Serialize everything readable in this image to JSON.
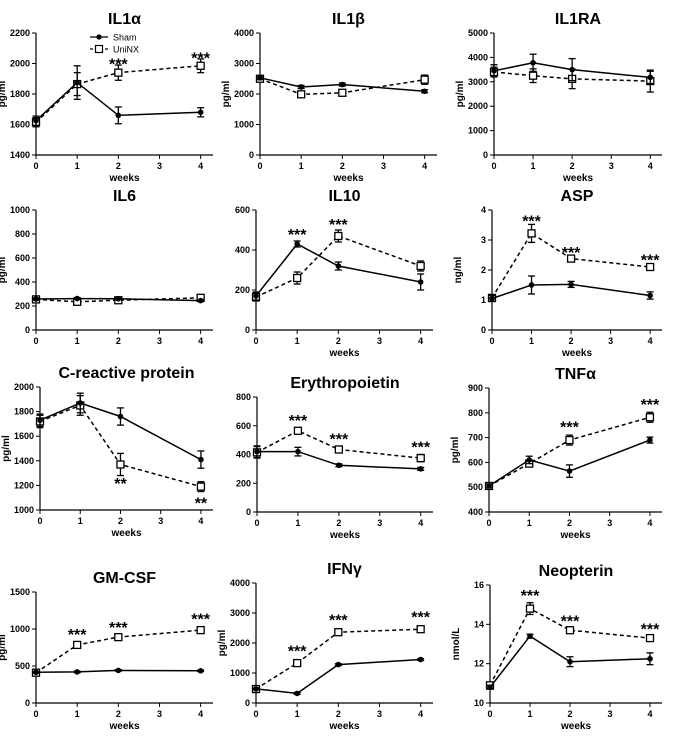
{
  "legend": {
    "sham": "Sham",
    "uninx": "UniNX"
  },
  "colors": {
    "ink": "#000000",
    "background": "#ffffff"
  },
  "chart_data": [
    {
      "type": "line",
      "title": "IL1α",
      "xlabel": "weeks",
      "ylabel": "pg/ml",
      "x": [
        0,
        1,
        2,
        4
      ],
      "xlim": [
        0,
        4.3
      ],
      "ylim": [
        1400,
        2200
      ],
      "yticks": [
        1400,
        1600,
        1800,
        2000,
        2200
      ],
      "xticks": [
        0,
        1,
        2,
        3,
        4
      ],
      "series": [
        {
          "name": "Sham",
          "values": [
            1625,
            1875,
            1660,
            1680
          ],
          "err": [
            30,
            110,
            55,
            30
          ]
        },
        {
          "name": "UniNX",
          "values": [
            1615,
            1865,
            1940,
            1985
          ],
          "err": [
            30,
            75,
            50,
            45
          ]
        }
      ],
      "annotations": [
        {
          "x": 2,
          "y": 2000,
          "text": "***"
        },
        {
          "x": 4,
          "y": 2040,
          "text": "***"
        }
      ]
    },
    {
      "type": "line",
      "title": "IL1β",
      "xlabel": "weeks",
      "ylabel": "pg/ml",
      "x": [
        0,
        1,
        2,
        4
      ],
      "xlim": [
        0,
        4.3
      ],
      "ylim": [
        0,
        4000
      ],
      "yticks": [
        0,
        1000,
        2000,
        3000,
        4000
      ],
      "xticks": [
        0,
        1,
        2,
        3,
        4
      ],
      "series": [
        {
          "name": "Sham",
          "values": [
            2530,
            2230,
            2310,
            2090
          ],
          "err": [
            60,
            50,
            50,
            50
          ]
        },
        {
          "name": "UniNX",
          "values": [
            2500,
            1990,
            2040,
            2470
          ],
          "err": [
            60,
            50,
            60,
            150
          ]
        }
      ],
      "annotations": []
    },
    {
      "type": "line",
      "title": "IL1RA",
      "xlabel": "weeks",
      "ylabel": "pg/ml",
      "x": [
        0,
        1,
        2,
        4
      ],
      "xlim": [
        0,
        4.3
      ],
      "ylim": [
        0,
        5000
      ],
      "yticks": [
        0,
        1000,
        2000,
        3000,
        4000,
        5000
      ],
      "xticks": [
        0,
        1,
        2,
        3,
        4
      ],
      "series": [
        {
          "name": "Sham",
          "values": [
            3450,
            3780,
            3500,
            3180
          ],
          "err": [
            250,
            350,
            450,
            250
          ]
        },
        {
          "name": "UniNX",
          "values": [
            3400,
            3250,
            3120,
            3030
          ],
          "err": [
            200,
            280,
            400,
            450
          ]
        }
      ],
      "annotations": []
    },
    {
      "type": "line",
      "title": "IL6",
      "xlabel": "",
      "ylabel": "pg/ml",
      "x": [
        0,
        1,
        2,
        4
      ],
      "xlim": [
        0,
        4.3
      ],
      "ylim": [
        0,
        1000
      ],
      "yticks": [
        0,
        200,
        400,
        600,
        800,
        1000
      ],
      "xticks": [
        0,
        1,
        2,
        3,
        4
      ],
      "series": [
        {
          "name": "Sham",
          "values": [
            258,
            262,
            260,
            245
          ],
          "err": [
            8,
            8,
            8,
            8
          ]
        },
        {
          "name": "UniNX",
          "values": [
            255,
            235,
            248,
            268
          ],
          "err": [
            10,
            10,
            12,
            12
          ]
        }
      ],
      "annotations": []
    },
    {
      "type": "line",
      "title": "IL10",
      "xlabel": "weeks",
      "ylabel": "",
      "x": [
        0,
        1,
        2,
        4
      ],
      "xlim": [
        0,
        4.3
      ],
      "ylim": [
        0,
        600
      ],
      "yticks": [
        0,
        200,
        400,
        600
      ],
      "xticks": [
        0,
        1,
        2,
        3,
        4
      ],
      "series": [
        {
          "name": "Sham",
          "values": [
            170,
            430,
            320,
            240
          ],
          "err": [
            20,
            15,
            20,
            40
          ]
        },
        {
          "name": "UniNX",
          "values": [
            165,
            260,
            470,
            320
          ],
          "err": [
            20,
            30,
            30,
            25
          ]
        }
      ],
      "annotations": [
        {
          "x": 1,
          "y": 480,
          "text": "***"
        },
        {
          "x": 2,
          "y": 530,
          "text": "***"
        }
      ]
    },
    {
      "type": "line",
      "title": "ASP",
      "xlabel": "weeks",
      "ylabel": "ng/ml",
      "x": [
        0,
        1,
        2,
        4
      ],
      "xlim": [
        0,
        4.3
      ],
      "ylim": [
        0,
        4
      ],
      "yticks": [
        0,
        1,
        2,
        3,
        4
      ],
      "xticks": [
        0,
        1,
        2,
        3,
        4
      ],
      "series": [
        {
          "name": "Sham",
          "values": [
            1.05,
            1.5,
            1.52,
            1.15
          ],
          "err": [
            0.1,
            0.3,
            0.1,
            0.12
          ]
        },
        {
          "name": "UniNX",
          "values": [
            1.07,
            3.22,
            2.38,
            2.1
          ],
          "err": [
            0.1,
            0.3,
            0.1,
            0.1
          ]
        }
      ],
      "annotations": [
        {
          "x": 1,
          "y": 3.65,
          "text": "***"
        },
        {
          "x": 2,
          "y": 2.6,
          "text": "***"
        },
        {
          "x": 4,
          "y": 2.35,
          "text": "***"
        }
      ]
    },
    {
      "type": "line",
      "title": "C-reactive protein",
      "xlabel": "weeks",
      "ylabel": "pg/ml",
      "x": [
        0,
        1,
        2,
        4
      ],
      "xlim": [
        0,
        4.3
      ],
      "ylim": [
        1000,
        2000
      ],
      "yticks": [
        1000,
        1200,
        1400,
        1600,
        1800,
        2000
      ],
      "xticks": [
        0,
        1,
        2,
        3,
        4
      ],
      "series": [
        {
          "name": "Sham",
          "values": [
            1730,
            1870,
            1760,
            1410
          ],
          "err": [
            50,
            80,
            70,
            70
          ]
        },
        {
          "name": "UniNX",
          "values": [
            1720,
            1850,
            1370,
            1190
          ],
          "err": [
            50,
            80,
            90,
            40
          ]
        }
      ],
      "annotations": [
        {
          "x": 2,
          "y": 1220,
          "text": "**"
        },
        {
          "x": 4,
          "y": 1060,
          "text": "**"
        }
      ]
    },
    {
      "type": "line",
      "title": "Erythropoietin",
      "xlabel": "weeks",
      "ylabel": "",
      "x": [
        0,
        1,
        2,
        4
      ],
      "xlim": [
        0,
        4.3
      ],
      "ylim": [
        0,
        800
      ],
      "yticks": [
        0,
        200,
        400,
        600,
        800
      ],
      "xticks": [
        0,
        1,
        2,
        3,
        4
      ],
      "series": [
        {
          "name": "Sham",
          "values": [
            420,
            420,
            325,
            300
          ],
          "err": [
            40,
            30,
            10,
            10
          ]
        },
        {
          "name": "UniNX",
          "values": [
            415,
            565,
            435,
            375
          ],
          "err": [
            40,
            20,
            15,
            25
          ]
        }
      ],
      "annotations": [
        {
          "x": 1,
          "y": 640,
          "text": "***"
        },
        {
          "x": 2,
          "y": 510,
          "text": "***"
        },
        {
          "x": 4,
          "y": 455,
          "text": "***"
        }
      ]
    },
    {
      "type": "line",
      "title": "TNFα",
      "xlabel": "weeks",
      "ylabel": "pg/ml",
      "x": [
        0,
        1,
        2,
        4
      ],
      "xlim": [
        0,
        4.3
      ],
      "ylim": [
        400,
        900
      ],
      "yticks": [
        400,
        500,
        600,
        700,
        800,
        900
      ],
      "xticks": [
        0,
        1,
        2,
        3,
        4
      ],
      "series": [
        {
          "name": "Sham",
          "values": [
            505,
            610,
            565,
            690
          ],
          "err": [
            8,
            15,
            25,
            12
          ]
        },
        {
          "name": "UniNX",
          "values": [
            505,
            595,
            690,
            782
          ],
          "err": [
            8,
            12,
            20,
            20
          ]
        }
      ],
      "annotations": [
        {
          "x": 2,
          "y": 745,
          "text": "***"
        },
        {
          "x": 4,
          "y": 835,
          "text": "***"
        }
      ]
    },
    {
      "type": "line",
      "title": "GM-CSF",
      "xlabel": "weeks",
      "ylabel": "pg/ml",
      "x": [
        0,
        1,
        2,
        4
      ],
      "xlim": [
        0,
        4.3
      ],
      "ylim": [
        0,
        1500
      ],
      "yticks": [
        0,
        500,
        1000,
        1500
      ],
      "xticks": [
        0,
        1,
        2,
        3,
        4
      ],
      "series": [
        {
          "name": "Sham",
          "values": [
            415,
            420,
            440,
            435
          ],
          "err": [
            10,
            10,
            10,
            10
          ]
        },
        {
          "name": "UniNX",
          "values": [
            410,
            785,
            890,
            985
          ],
          "err": [
            10,
            20,
            15,
            15
          ]
        }
      ],
      "annotations": [
        {
          "x": 1,
          "y": 930,
          "text": "***"
        },
        {
          "x": 2,
          "y": 1030,
          "text": "***"
        },
        {
          "x": 4,
          "y": 1140,
          "text": "***"
        }
      ]
    },
    {
      "type": "line",
      "title": "IFNγ",
      "xlabel": "weeks",
      "ylabel": "pg/ml",
      "x": [
        0,
        1,
        2,
        4
      ],
      "xlim": [
        0,
        4.3
      ],
      "ylim": [
        0,
        4000
      ],
      "yticks": [
        0,
        1000,
        2000,
        3000,
        4000
      ],
      "xticks": [
        0,
        1,
        2,
        3,
        4
      ],
      "series": [
        {
          "name": "Sham",
          "values": [
            470,
            320,
            1280,
            1450
          ],
          "err": [
            30,
            30,
            30,
            30
          ]
        },
        {
          "name": "UniNX",
          "values": [
            465,
            1330,
            2360,
            2460
          ],
          "err": [
            30,
            40,
            40,
            40
          ]
        }
      ],
      "annotations": [
        {
          "x": 1,
          "y": 1750,
          "text": "***"
        },
        {
          "x": 2,
          "y": 2780,
          "text": "***"
        },
        {
          "x": 4,
          "y": 2880,
          "text": "***"
        }
      ]
    },
    {
      "type": "line",
      "title": "Neopterin",
      "xlabel": "weeks",
      "ylabel": "nmol/L",
      "x": [
        0,
        1,
        2,
        4
      ],
      "xlim": [
        0,
        4.3
      ],
      "ylim": [
        10,
        16
      ],
      "yticks": [
        10,
        12,
        14,
        16
      ],
      "xticks": [
        0,
        1,
        2,
        3,
        4
      ],
      "series": [
        {
          "name": "Sham",
          "values": [
            10.8,
            13.4,
            12.1,
            12.25
          ],
          "err": [
            0.1,
            0.1,
            0.25,
            0.3
          ]
        },
        {
          "name": "UniNX",
          "values": [
            10.9,
            14.8,
            13.7,
            13.3
          ],
          "err": [
            0.1,
            0.3,
            0.1,
            0.1
          ]
        }
      ],
      "annotations": [
        {
          "x": 1,
          "y": 15.5,
          "text": "***"
        },
        {
          "x": 2,
          "y": 14.2,
          "text": "***"
        },
        {
          "x": 4,
          "y": 13.8,
          "text": "***"
        }
      ]
    }
  ]
}
